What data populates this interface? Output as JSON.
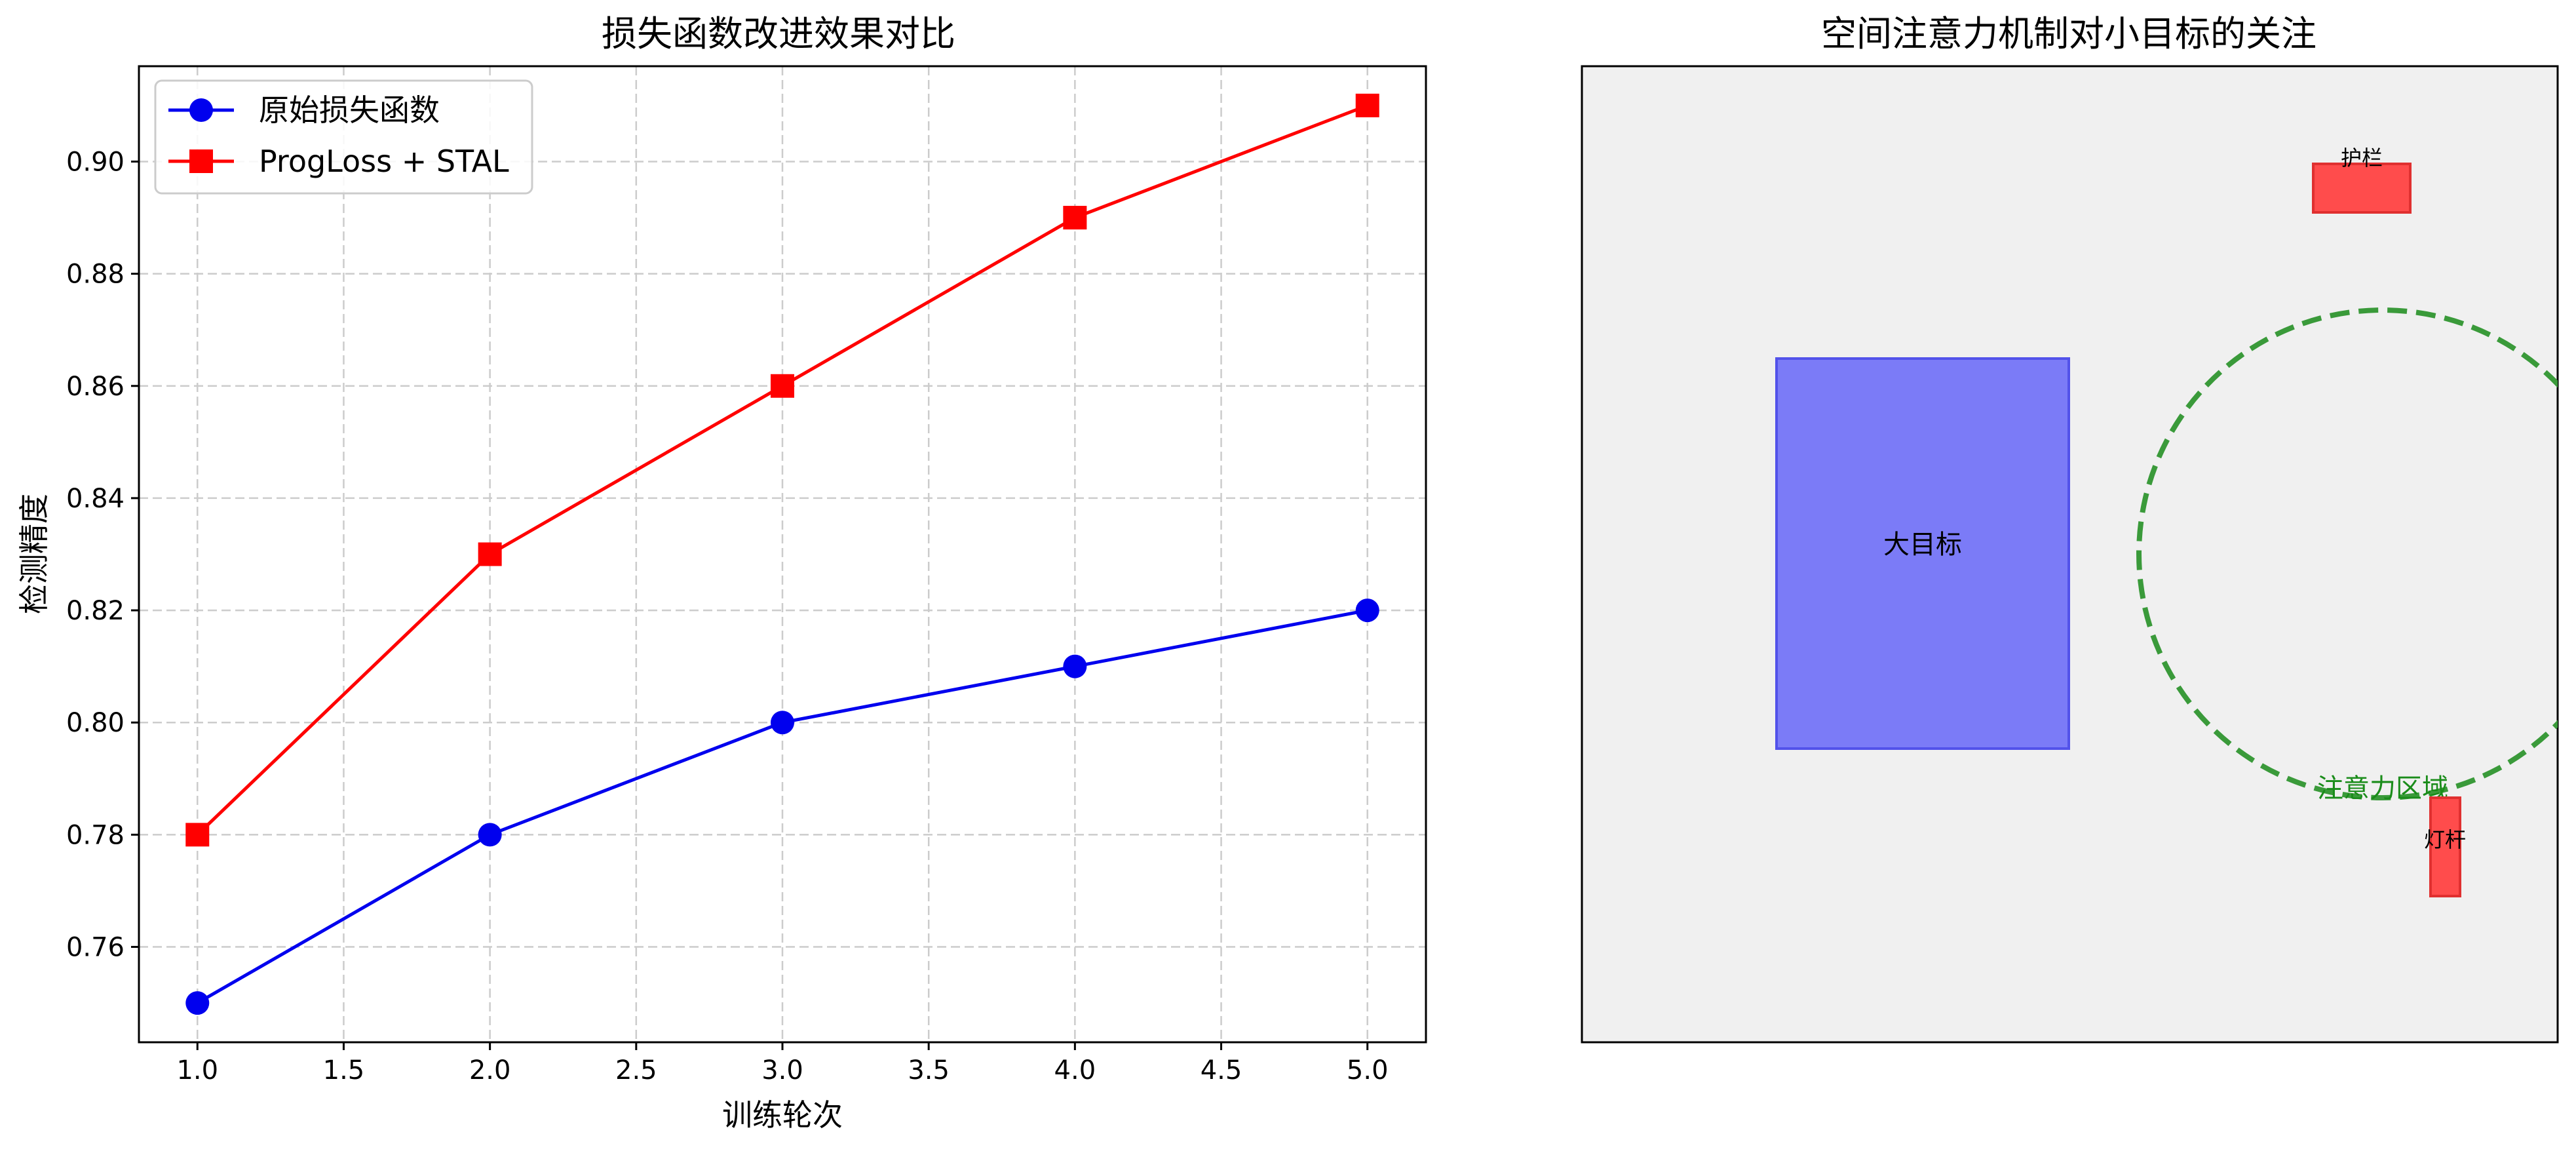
{
  "colors": {
    "original": "#0000ee",
    "improved": "#ff0000",
    "grid": "#cccccc",
    "attention": "#3a9a3a",
    "attention_text": "#1a8c1a",
    "large_target_fill": "#7b7bf7",
    "large_target_stroke": "#5252ea",
    "small_target_fill": "#ff4c4c",
    "small_target_stroke": "#e03030",
    "panel_bg": "#f0f0f0"
  },
  "chart_data": [
    {
      "type": "line",
      "title": "损失函数改进效果对比",
      "xlabel": "训练轮次",
      "ylabel": "检测精度",
      "x": [
        1,
        2,
        3,
        4,
        5
      ],
      "series": [
        {
          "name": "原始损失函数",
          "marker": "circle",
          "color": "#0000ee",
          "values": [
            0.75,
            0.78,
            0.8,
            0.81,
            0.82
          ]
        },
        {
          "name": "ProgLoss + STAL",
          "marker": "square",
          "color": "#ff0000",
          "values": [
            0.78,
            0.83,
            0.86,
            0.89,
            0.91
          ]
        }
      ],
      "xlim": [
        0.8,
        5.2
      ],
      "ylim": [
        0.743,
        0.917
      ],
      "xticks": [
        "1.0",
        "1.5",
        "2.0",
        "2.5",
        "3.0",
        "3.5",
        "4.0",
        "4.5",
        "5.0"
      ],
      "yticks": [
        "0.76",
        "0.78",
        "0.80",
        "0.82",
        "0.84",
        "0.86",
        "0.88",
        "0.90"
      ],
      "grid": true,
      "legend": "top-left"
    },
    {
      "type": "diagram",
      "title": "空间注意力机制对小目标的关注",
      "labels": {
        "large_target": "大目标",
        "guardrail": "护栏",
        "lamp_pole": "灯杆",
        "attention_region": "注意力区域"
      }
    }
  ]
}
